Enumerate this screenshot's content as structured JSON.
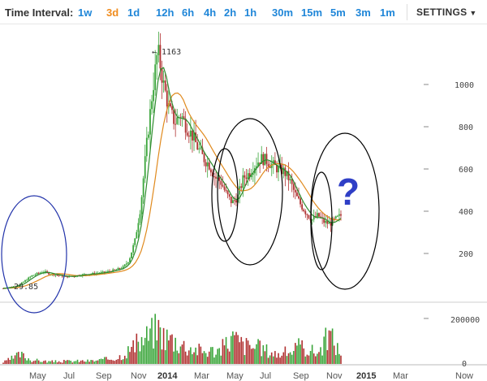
{
  "toolbar": {
    "time_interval_label": "Time Interval:",
    "intervals": [
      "1w",
      "3d",
      "1d",
      "12h",
      "6h",
      "4h",
      "2h",
      "1h",
      "30m",
      "15m",
      "5m",
      "3m",
      "1m"
    ],
    "active_interval": "3d",
    "settings_label": "SETTINGS",
    "active_color": "#f08c1e",
    "link_color": "#1f86d8"
  },
  "chart_data": {
    "type": "candlestick",
    "x_ticks": [
      "May",
      "Jul",
      "Sep",
      "Nov",
      "2014",
      "Mar",
      "May",
      "Jul",
      "Sep",
      "Nov",
      "2015",
      "Mar",
      "Now"
    ],
    "bold_ticks": [
      "2014",
      "2015"
    ],
    "price_ticks": [
      "200",
      "400",
      "600",
      "800",
      "1000"
    ],
    "volume_ticks": [
      "200000",
      "0"
    ],
    "annotations": {
      "high_label": "← 1163",
      "low_label": "29.85",
      "question_mark": "?"
    },
    "price_points": [
      [
        0,
        35
      ],
      [
        1,
        40
      ],
      [
        2,
        45
      ],
      [
        3,
        55
      ],
      [
        4,
        75
      ],
      [
        5,
        95
      ],
      [
        6,
        105
      ],
      [
        7,
        115
      ],
      [
        8,
        105
      ],
      [
        9,
        100
      ],
      [
        10,
        95
      ],
      [
        11,
        90
      ],
      [
        12,
        92
      ],
      [
        13,
        96
      ],
      [
        14,
        100
      ],
      [
        15,
        102
      ],
      [
        16,
        105
      ],
      [
        17,
        108
      ],
      [
        18,
        112
      ],
      [
        19,
        118
      ],
      [
        20,
        125
      ],
      [
        21,
        135
      ],
      [
        22,
        170
      ],
      [
        23,
        260
      ],
      [
        24,
        420
      ],
      [
        25,
        700
      ],
      [
        26,
        950
      ],
      [
        27,
        1163
      ],
      [
        28,
        1000
      ],
      [
        29,
        880
      ],
      [
        30,
        820
      ],
      [
        31,
        860
      ],
      [
        32,
        800
      ],
      [
        33,
        760
      ],
      [
        34,
        700
      ],
      [
        35,
        650
      ],
      [
        36,
        620
      ],
      [
        37,
        560
      ],
      [
        38,
        540
      ],
      [
        39,
        480
      ],
      [
        40,
        440
      ],
      [
        41,
        470
      ],
      [
        42,
        560
      ],
      [
        43,
        580
      ],
      [
        44,
        620
      ],
      [
        45,
        650
      ],
      [
        46,
        640
      ],
      [
        47,
        620
      ],
      [
        48,
        600
      ],
      [
        49,
        590
      ],
      [
        50,
        550
      ],
      [
        51,
        480
      ],
      [
        52,
        430
      ],
      [
        53,
        390
      ],
      [
        54,
        360
      ],
      [
        55,
        380
      ],
      [
        56,
        350
      ],
      [
        57,
        340
      ],
      [
        58,
        360
      ],
      [
        59,
        380
      ]
    ],
    "volume_points": [
      [
        0,
        10
      ],
      [
        3,
        60
      ],
      [
        5,
        25
      ],
      [
        8,
        15
      ],
      [
        12,
        18
      ],
      [
        16,
        20
      ],
      [
        20,
        40
      ],
      [
        22,
        90
      ],
      [
        24,
        140
      ],
      [
        26,
        200
      ],
      [
        27,
        230
      ],
      [
        28,
        180
      ],
      [
        30,
        150
      ],
      [
        32,
        110
      ],
      [
        35,
        80
      ],
      [
        38,
        90
      ],
      [
        40,
        170
      ],
      [
        42,
        120
      ],
      [
        45,
        100
      ],
      [
        48,
        60
      ],
      [
        50,
        80
      ],
      [
        52,
        110
      ],
      [
        55,
        70
      ],
      [
        57,
        190
      ],
      [
        59,
        60
      ]
    ],
    "circle_color": "#000000",
    "first_circle_color": "#2233aa",
    "up_color": "#3aa53a",
    "down_color": "#b03030",
    "ma_short_color": "#2e8b2e",
    "ma_long_color": "#e08a1e"
  }
}
